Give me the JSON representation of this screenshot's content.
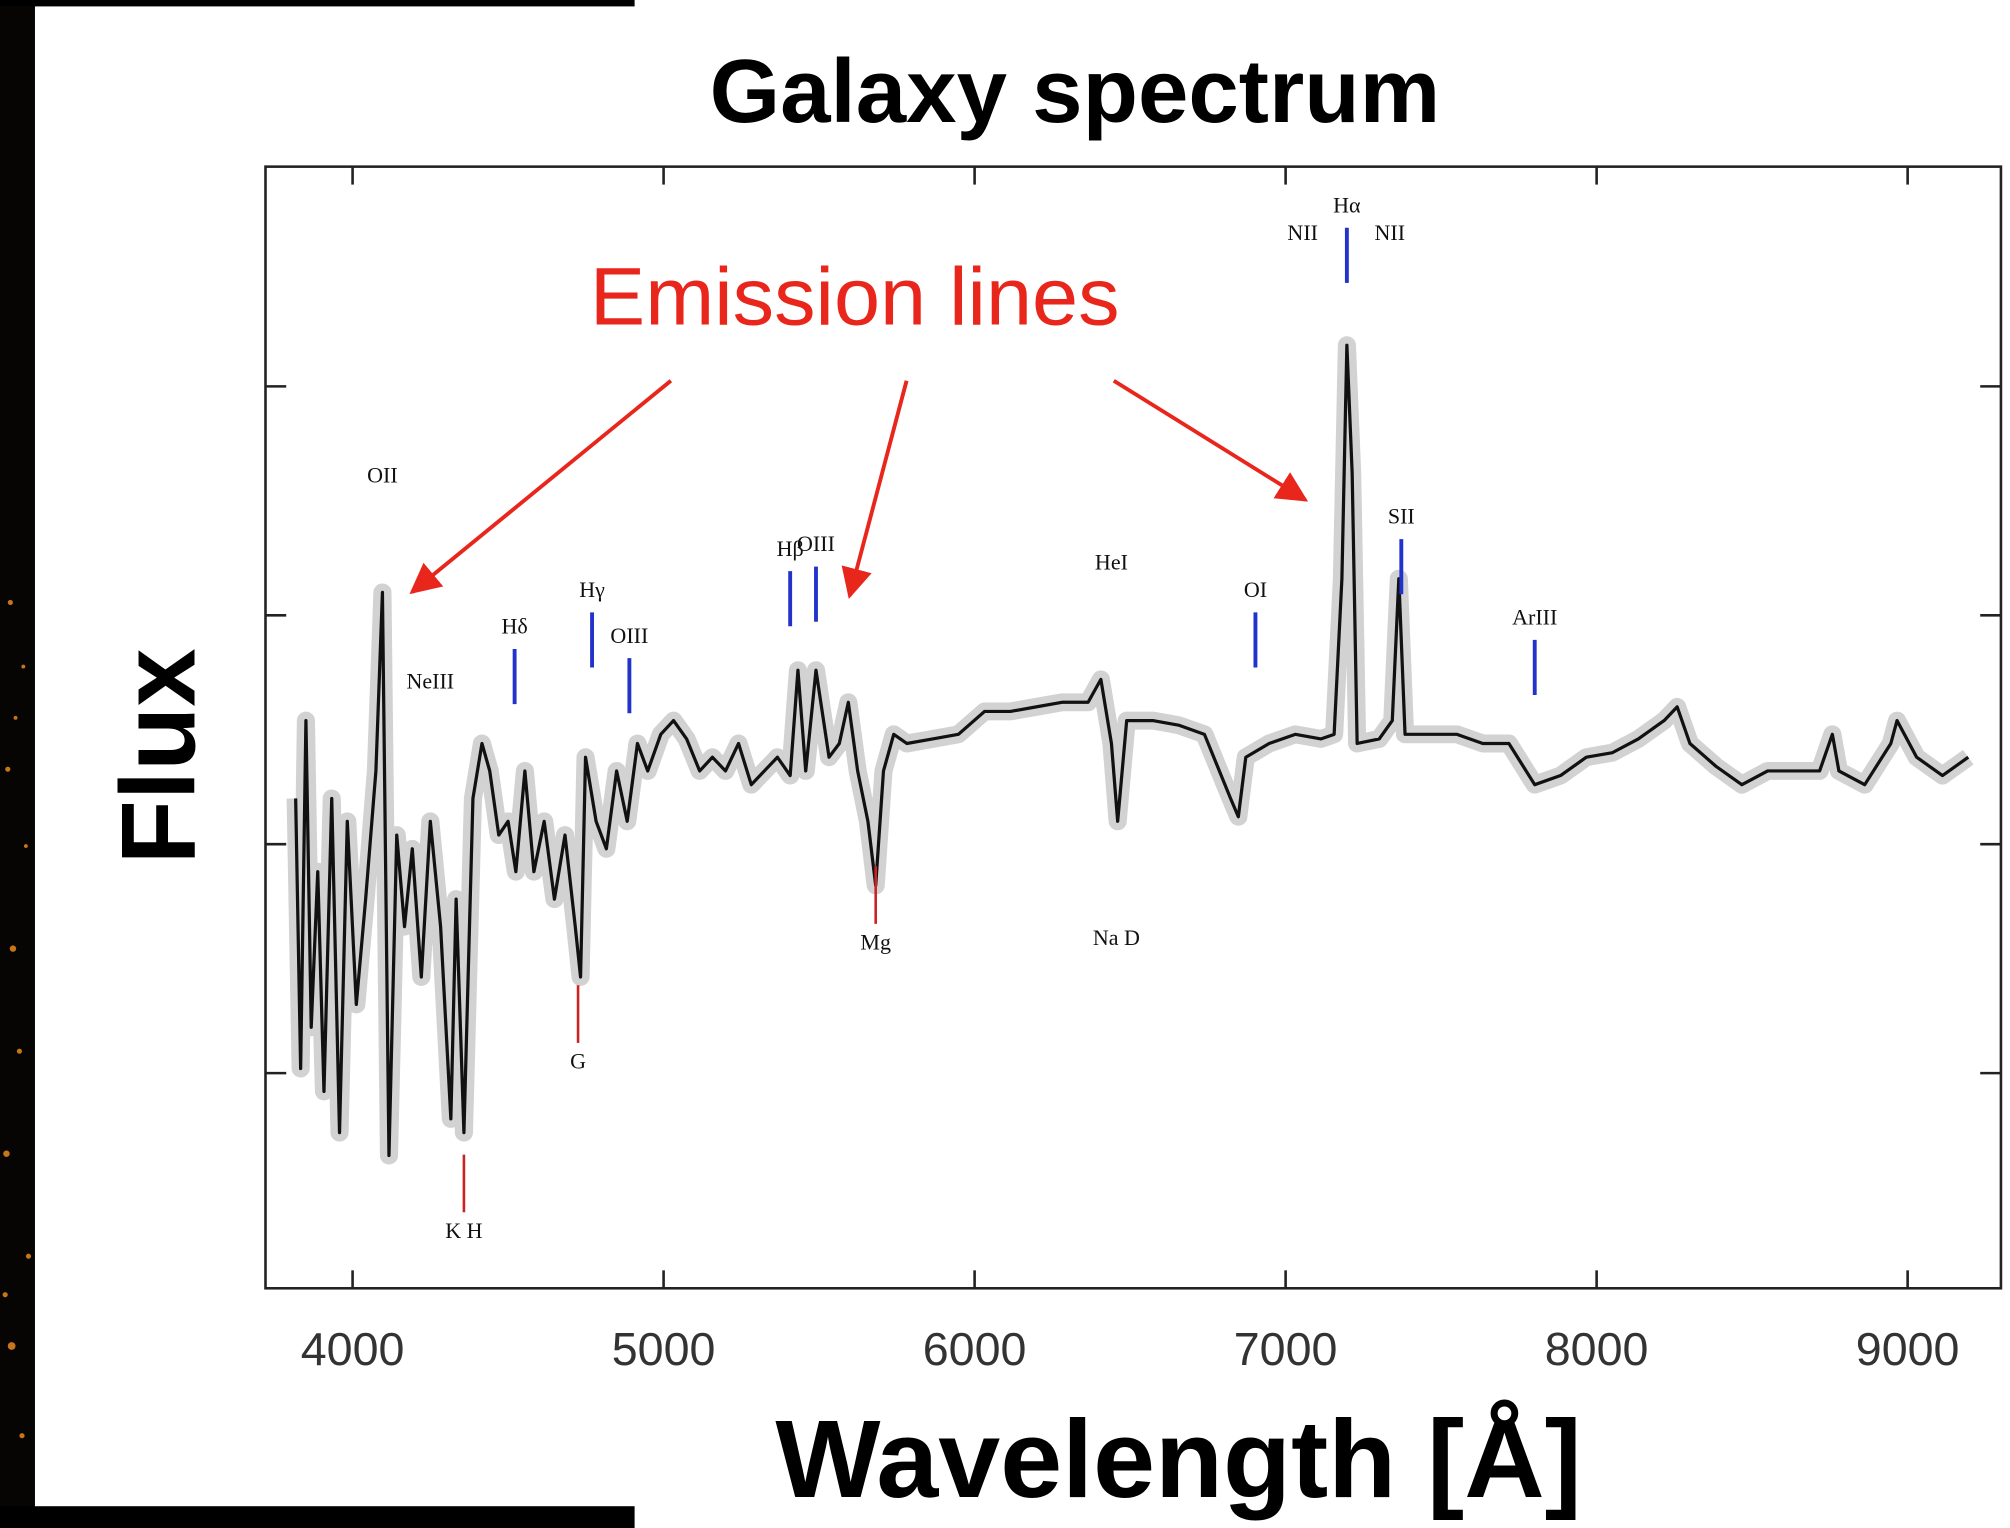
{
  "chart_data": {
    "type": "line",
    "title": "Galaxy spectrum",
    "xlabel": "Wavelength [Å]",
    "ylabel": "Flux",
    "callout": "Emission lines",
    "xlim": [
      3720,
      9300
    ],
    "ylim": [
      0.03,
      2.48
    ],
    "xticks": [
      4000,
      5000,
      6000,
      7000,
      8000,
      9000
    ],
    "yticks": [
      0.5,
      1,
      1.5,
      2
    ],
    "x": [
      3817,
      3833,
      3850,
      3867,
      3888,
      3908,
      3933,
      3958,
      3983,
      4012,
      4042,
      4075,
      4096,
      4117,
      4142,
      4167,
      4192,
      4221,
      4250,
      4283,
      4316,
      4333,
      4358,
      4387,
      4416,
      4441,
      4470,
      4500,
      4525,
      4554,
      4583,
      4616,
      4649,
      4683,
      4716,
      4733,
      4749,
      4783,
      4816,
      4849,
      4883,
      4916,
      4949,
      4991,
      5032,
      5074,
      5116,
      5157,
      5199,
      5241,
      5282,
      5324,
      5366,
      5407,
      5432,
      5457,
      5490,
      5532,
      5565,
      5594,
      5624,
      5657,
      5682,
      5707,
      5740,
      5782,
      5865,
      5948,
      6032,
      6115,
      6198,
      6281,
      6365,
      6406,
      6440,
      6460,
      6489,
      6573,
      6656,
      6739,
      6823,
      6848,
      6872,
      6947,
      7031,
      7114,
      7156,
      7181,
      7197,
      7214,
      7230,
      7301,
      7343,
      7364,
      7384,
      7468,
      7551,
      7634,
      7718,
      7801,
      7884,
      7967,
      8051,
      8134,
      8217,
      8259,
      8300,
      8384,
      8467,
      8550,
      8633,
      8717,
      8758,
      8779,
      8862,
      8946,
      8966,
      9029,
      9112,
      9195
    ],
    "series": [
      {
        "color": "#111111",
        "values": [
          1.1,
          0.51,
          1.27,
          0.6,
          0.94,
          0.46,
          1.1,
          0.37,
          1.05,
          0.65,
          0.88,
          1.16,
          1.55,
          0.32,
          1.02,
          0.82,
          0.99,
          0.71,
          1.05,
          0.82,
          0.4,
          0.88,
          0.37,
          1.1,
          1.22,
          1.16,
          1.02,
          1.05,
          0.94,
          1.16,
          0.94,
          1.05,
          0.88,
          1.02,
          0.82,
          0.71,
          1.19,
          1.05,
          0.99,
          1.16,
          1.05,
          1.22,
          1.16,
          1.24,
          1.27,
          1.23,
          1.16,
          1.19,
          1.16,
          1.22,
          1.13,
          1.16,
          1.19,
          1.15,
          1.38,
          1.16,
          1.38,
          1.19,
          1.22,
          1.31,
          1.16,
          1.05,
          0.91,
          1.16,
          1.24,
          1.22,
          1.23,
          1.24,
          1.29,
          1.29,
          1.3,
          1.31,
          1.31,
          1.36,
          1.22,
          1.05,
          1.27,
          1.27,
          1.26,
          1.24,
          1.1,
          1.06,
          1.19,
          1.22,
          1.24,
          1.23,
          1.24,
          1.58,
          2.09,
          1.81,
          1.22,
          1.23,
          1.27,
          1.58,
          1.24,
          1.24,
          1.24,
          1.22,
          1.22,
          1.13,
          1.15,
          1.19,
          1.2,
          1.23,
          1.27,
          1.3,
          1.22,
          1.17,
          1.13,
          1.16,
          1.16,
          1.16,
          1.24,
          1.16,
          1.13,
          1.22,
          1.27,
          1.19,
          1.15,
          1.19
        ]
      }
    ],
    "annotations": [
      {
        "text": "OII",
        "x": 4096,
        "y": 1.79,
        "color": "#111111"
      },
      {
        "text": "NeIII",
        "x": 4250,
        "y": 1.34,
        "color": "#111111"
      },
      {
        "text": "Hδ",
        "x": 4521,
        "y": 1.46,
        "color": "#2233cc"
      },
      {
        "text": "Hγ",
        "x": 4770,
        "y": 1.54,
        "color": "#2233cc"
      },
      {
        "text": "OIII",
        "x": 4890,
        "y": 1.44,
        "color": "#2233cc"
      },
      {
        "text": "Hβ",
        "x": 5407,
        "y": 1.63,
        "color": "#2233cc"
      },
      {
        "text": "OIII",
        "x": 5490,
        "y": 1.64,
        "color": "#2233cc"
      },
      {
        "text": "HeI",
        "x": 6440,
        "y": 1.6,
        "color": "#111111"
      },
      {
        "text": "OI",
        "x": 6903,
        "y": 1.54,
        "color": "#2233cc"
      },
      {
        "text": "NII",
        "x": 7055,
        "y": 2.32,
        "color": "#111111"
      },
      {
        "text": "Hα",
        "x": 7197,
        "y": 2.38,
        "color": "#2233cc"
      },
      {
        "text": "NII",
        "x": 7335,
        "y": 2.32,
        "color": "#111111"
      },
      {
        "text": "SII",
        "x": 7372,
        "y": 1.7,
        "color": "#2233cc"
      },
      {
        "text": "ArIII",
        "x": 7801,
        "y": 1.48,
        "color": "#2233cc"
      },
      {
        "text": "K H",
        "x": 4358,
        "y": 0.14,
        "color": "#cc2222"
      },
      {
        "text": "G",
        "x": 4725,
        "y": 0.51,
        "color": "#cc2222"
      },
      {
        "text": "Mg",
        "x": 5682,
        "y": 0.77,
        "color": "#cc2222"
      },
      {
        "text": "Na D",
        "x": 6456,
        "y": 0.78,
        "color": "#111111"
      }
    ]
  }
}
